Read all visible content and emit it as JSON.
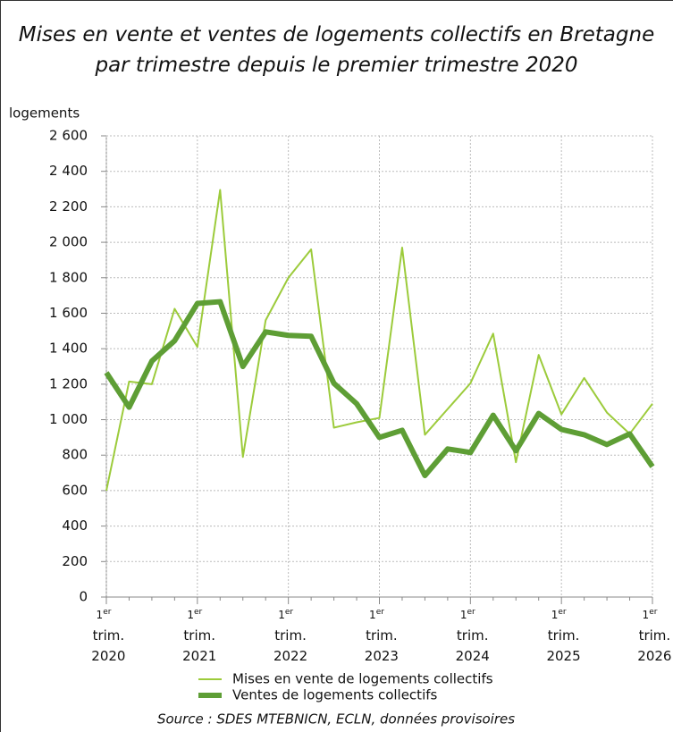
{
  "chart_data": {
    "type": "line",
    "title": "Mises en vente et ventes de logements collectifs en Bretagne par trimestre depuis le premier trimestre 2020",
    "y_label": "logements",
    "source": "Source : SDES MTEBNICN, ECLN, données provisoires",
    "categories": [
      "1er trim. 2020",
      null,
      null,
      null,
      "1er trim. 2021",
      null,
      null,
      null,
      "1er trim. 2022",
      null,
      null,
      null,
      "1er trim. 2023",
      null,
      null,
      null,
      "1er trim. 2024",
      null,
      null,
      null,
      "1er trim. 2025",
      null,
      null,
      null,
      "1er trim. 2026"
    ],
    "series": [
      {
        "name": "Mises en vente de logements collectifs",
        "color": "#9ccb3b",
        "values": [
          600,
          1215,
          1200,
          1625,
          1410,
          2295,
          790,
          1560,
          1800,
          1960,
          955,
          985,
          1010,
          1970,
          915,
          1060,
          1205,
          1485,
          760,
          1365,
          1030,
          1235,
          1040,
          920,
          1090
        ]
      },
      {
        "name": "Ventes de logements collectifs",
        "color": "#5e9e35",
        "values": [
          1265,
          1070,
          1330,
          1445,
          1655,
          1665,
          1300,
          1495,
          1475,
          1470,
          1205,
          1090,
          900,
          940,
          685,
          835,
          815,
          1025,
          825,
          1035,
          945,
          915,
          860,
          920,
          735
        ]
      }
    ],
    "ylim": [
      0,
      2600
    ],
    "yticks": [
      0,
      200,
      400,
      600,
      800,
      {
        "value": 1000,
        "label": "1 000"
      },
      {
        "value": 1200,
        "label": "1 200"
      },
      {
        "value": 1400,
        "label": "1 400"
      },
      {
        "value": 1600,
        "label": "1 600"
      },
      {
        "value": 1800,
        "label": "1 800"
      },
      {
        "value": 2000,
        "label": "2 000"
      },
      {
        "value": 2200,
        "label": "2 200"
      },
      {
        "value": 2400,
        "label": "2 400"
      },
      {
        "value": 2600,
        "label": "2 600"
      }
    ],
    "grid": true
  }
}
